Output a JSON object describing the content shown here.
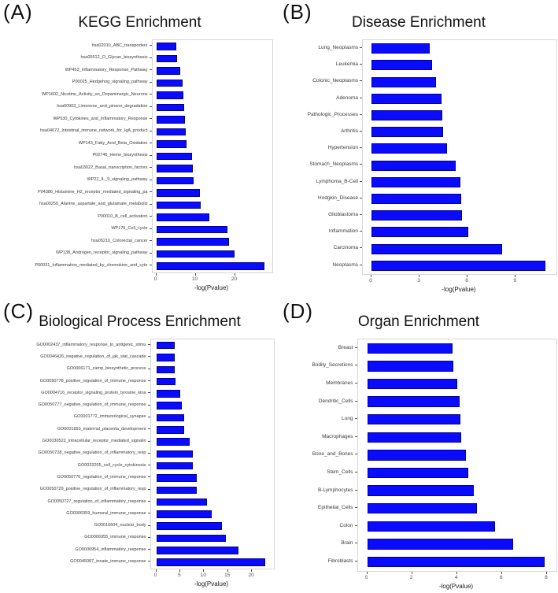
{
  "page": {
    "background": "#ffffff"
  },
  "style": {
    "bar_fill": "#0a0aff",
    "bar_border": "#000099",
    "panel_border": "#d6d6d6"
  },
  "chart_data": [
    {
      "type": "bar",
      "orientation": "horizontal",
      "tag": "(A)",
      "title": "KEGG Enrichment",
      "xlabel": "-log(Pvalue)",
      "categories": [
        "hsa02010_ABC_transporters",
        "hsa00512_O_Glycan_biosynthesis",
        "WP453_Inflammatory_Response_Pathway",
        "P00025_Hedgehog_signaling_pathway",
        "WP1602_Nicotine_Activity_on_Dopaminergic_Neurons",
        "hsa00903_Limonene_and_pinene_degradation",
        "WP530_Cytokines_and_Inflammatory_Response",
        "hsa04672_Intestinal_immune_network_for_IgA_product",
        "WP143_Fatty_Acid_Beta_Oxidation",
        "P02746_Heme_biosynthesis",
        "hsa03022_Basal_transcription_factors",
        "WP22_IL_9_signaling_pathway",
        "P04386_Histamine_H2_receptor_mediated_signaling_pa",
        "hsa00250_Alanine_aspartate_and_glutamate_metabolis",
        "P00010_B_cell_activation",
        "WP179_Cell_cycle",
        "hsa05210_Colorectal_cancer",
        "WP138_Androgen_receptor_signaling_pathway",
        "P00031_Inflammation_mediated_by_chemokine_and_cyto"
      ],
      "values": [
        5.0,
        5.2,
        6.0,
        6.7,
        6.8,
        7.0,
        7.3,
        7.4,
        7.6,
        9.0,
        9.2,
        9.5,
        11.0,
        11.2,
        13.4,
        18.0,
        18.5,
        19.8,
        27.5
      ],
      "xlim": [
        0,
        28.8
      ],
      "xticks": [
        0,
        10,
        20
      ],
      "grid": false,
      "legend": false
    },
    {
      "type": "bar",
      "orientation": "horizontal",
      "tag": "(B)",
      "title": "Disease Enrichment",
      "xlabel": "-log(Pvalue)",
      "categories": [
        "Lung_Neoplasms",
        "Leukemia",
        "Colonic_Neoplasms",
        "Adenoma",
        "Pathologic_Processes",
        "Arthritis",
        "Hypertension",
        "Stomach_Neoplasms",
        "Lymphoma_B-Cell",
        "Hodgkin_Disease",
        "Glioblastoma",
        "Inflammation",
        "Carcinoma",
        "Neoplasms"
      ],
      "values": [
        3.65,
        3.8,
        4.05,
        4.35,
        4.4,
        4.45,
        4.7,
        5.25,
        5.55,
        5.6,
        5.65,
        6.05,
        8.15,
        10.85
      ],
      "xlim": [
        0,
        11.4
      ],
      "xticks": [
        0,
        3,
        6,
        9
      ],
      "grid": false,
      "legend": false
    },
    {
      "type": "bar",
      "orientation": "horizontal",
      "tag": "(C)",
      "title": "Biological Process Enrichment",
      "xlabel": "-log(Pvalue)",
      "categories": [
        "GO0002437_inflammatory_response_to_antigenic_stimu",
        "GO0046426_negative_regulation_of_jak_stat_cascade",
        "GO0006171_camp_biosynthetic_process",
        "GO0050778_positive_regulation_of_immune_response",
        "GO0004716_receptor_signaling_protein_tyrosine_kina",
        "GO0050777_negative_regulation_of_immune_response",
        "GO0001772_immunological_synapse",
        "GO0001893_maternal_placenta_development",
        "GO0030522_intracellular_receptor_mediated_signalin",
        "GO0050728_negative_regulation_of_inflammatory_resp",
        "GO0033205_cell_cycle_cytokinesis",
        "GO0050776_regulation_of_immune_response",
        "GO0050729_positive_regulation_of_inflammatory_resp",
        "GO0050727_regulation_of_inflammatory_response",
        "GO0006959_humoral_immune_response",
        "GO0016604_nuclear_body",
        "GO0006955_immune_response",
        "GO0006954_inflammatory_response",
        "GO0045087_innate_immune_response"
      ],
      "values": [
        3.8,
        3.9,
        3.9,
        4.0,
        5.0,
        5.4,
        5.8,
        5.9,
        7.0,
        7.7,
        7.7,
        8.4,
        8.4,
        10.6,
        11.6,
        13.7,
        14.6,
        17.1,
        22.8
      ],
      "xlim": [
        0,
        24.0
      ],
      "xticks": [
        0,
        5,
        10,
        15,
        20
      ],
      "grid": false,
      "legend": false
    },
    {
      "type": "bar",
      "orientation": "horizontal",
      "tag": "(D)",
      "title": "Organ Enrichment",
      "xlabel": "-log(Pvalue)",
      "categories": [
        "Breast",
        "Bodily_Secretions",
        "Membranes",
        "Dendritic_Cells",
        "Lung",
        "Macrophages",
        "Bone_and_Bones",
        "Stem_Cells",
        "B-Lymphocytes",
        "Epithelial_Cells",
        "Colon",
        "Brain",
        "Fibroblasts"
      ],
      "values": [
        3.8,
        3.85,
        4.0,
        4.1,
        4.15,
        4.2,
        4.4,
        4.5,
        4.75,
        4.9,
        5.7,
        6.5,
        7.9
      ],
      "xlim": [
        0,
        8.3
      ],
      "xticks": [
        0,
        2,
        4,
        6,
        8
      ],
      "grid": false,
      "legend": false
    }
  ]
}
